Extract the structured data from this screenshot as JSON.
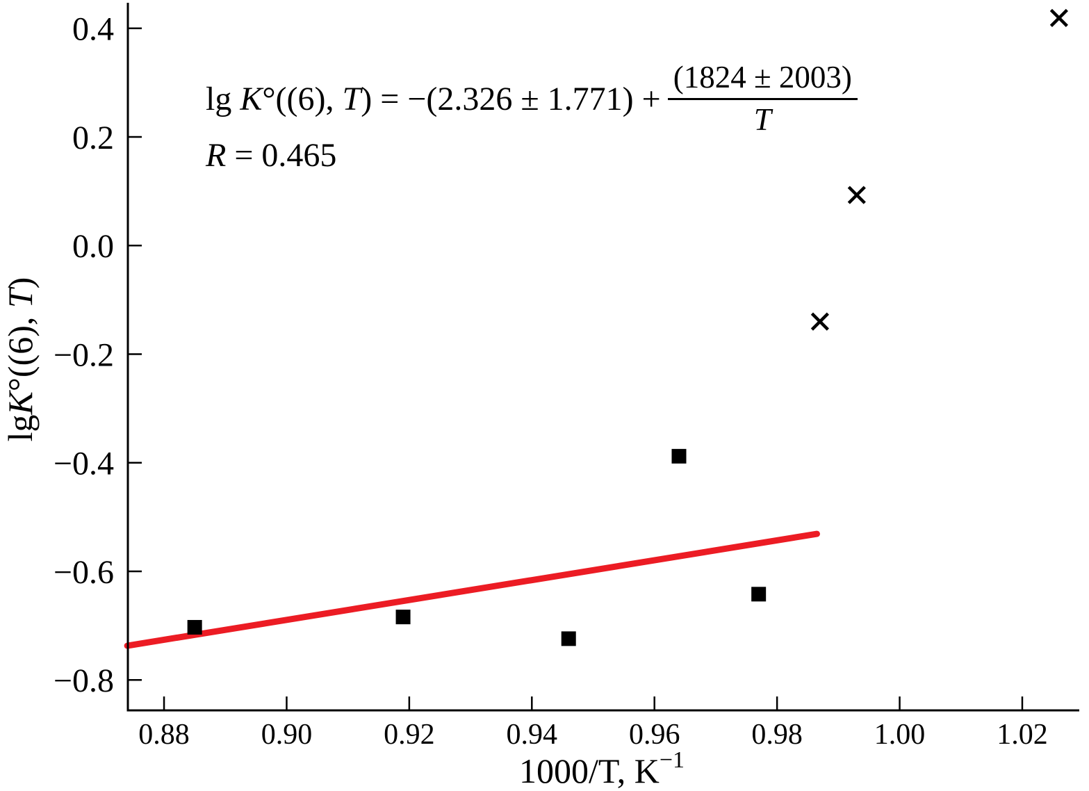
{
  "figure": {
    "background": "#ffffff",
    "equation": {
      "lg": "lg ",
      "K": "K",
      "mid": "°((6), ",
      "T": "T",
      "rhs": ") = −(2.326 ± 1.771) + ",
      "numerator": "(1824 ± 2003)",
      "denominator": "T"
    },
    "r_line": {
      "R": "R",
      "value": " = 0.465"
    },
    "x_axis": {
      "label_main": "1000/T, K",
      "label_sup": "−1",
      "tick_labels": [
        "0.88",
        "0.90",
        "0.92",
        "0.94",
        "0.96",
        "0.98",
        "1.00",
        "1.02"
      ]
    },
    "y_axis": {
      "label_lg": "lg",
      "label_K": "K",
      "label_mid": "°((6), ",
      "label_T": "T",
      "label_end": ")",
      "tick_labels": [
        "0.4",
        "0.2",
        "0.0",
        "−0.2",
        "−0.4",
        "−0.6",
        "−0.8"
      ]
    }
  },
  "chart_data": {
    "type": "scatter",
    "title": "",
    "xlabel": "1000/T, K⁻¹",
    "ylabel": "lg K°((6), T)",
    "xlim": [
      0.8741,
      1.0293
    ],
    "ylim": [
      -0.856,
      0.447
    ],
    "x_ticks": [
      0.88,
      0.9,
      0.92,
      0.94,
      0.96,
      0.98,
      1.0,
      1.02
    ],
    "y_ticks": [
      0.4,
      0.2,
      0.0,
      -0.2,
      -0.4,
      -0.6,
      -0.8
    ],
    "grid": false,
    "legend": "none",
    "series": [
      {
        "name": "filled-squares",
        "marker": "square",
        "color": "#000000",
        "marker_size_px": 21,
        "points": [
          [
            0.885,
            -0.703
          ],
          [
            0.919,
            -0.684
          ],
          [
            0.946,
            -0.724
          ],
          [
            0.964,
            -0.388
          ],
          [
            0.977,
            -0.642
          ]
        ]
      },
      {
        "name": "crosses",
        "marker": "x",
        "color": "#000000",
        "marker_size_px": 23,
        "points": [
          [
            0.987,
            -0.14
          ],
          [
            0.993,
            0.093
          ],
          [
            1.026,
            0.419
          ]
        ]
      }
    ],
    "fit_line": {
      "color": "#ec1c24",
      "stroke_width_px": 9,
      "x_start": 0.874,
      "y_start": -0.737,
      "x_end": 0.9865,
      "y_end": -0.531,
      "intercept": -2.326,
      "intercept_error": 1.771,
      "slope_per_1000_over_T": 1824,
      "slope_error": 2003,
      "R": 0.465
    },
    "annotations": [
      "lg K°((6), T) = −(2.326 ± 1.771) + (1824 ± 2003)/T",
      "R = 0.465"
    ]
  }
}
